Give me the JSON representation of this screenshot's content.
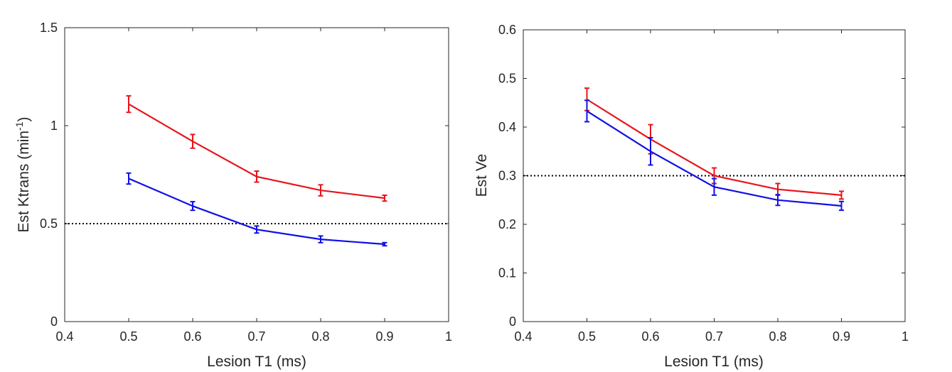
{
  "chart_data": [
    {
      "type": "line",
      "title": "",
      "xlabel": "Lesion T1 (ms)",
      "ylabel_main": "Est Ktrans (min",
      "ylabel_sup": "-1",
      "ylabel_close": ")",
      "xlim": [
        0.4,
        1.0
      ],
      "ylim": [
        0,
        1.5
      ],
      "xticks": [
        0.4,
        0.5,
        0.6,
        0.7,
        0.8,
        0.9,
        1.0
      ],
      "xtick_labels": [
        "0.4",
        "0.5",
        "0.6",
        "0.7",
        "0.8",
        "0.9",
        "1"
      ],
      "yticks": [
        0,
        0.5,
        1.0,
        1.5
      ],
      "ytick_labels": [
        "0",
        "0.5",
        "1",
        "1.5"
      ],
      "reference_line": 0.5,
      "x": [
        0.5,
        0.6,
        0.7,
        0.8,
        0.9
      ],
      "series": [
        {
          "name": "red",
          "color": "#e8141a",
          "values": [
            1.11,
            0.92,
            0.74,
            0.67,
            0.63
          ],
          "errors": [
            0.042,
            0.035,
            0.028,
            0.028,
            0.015
          ]
        },
        {
          "name": "blue",
          "color": "#1010e6",
          "values": [
            0.73,
            0.59,
            0.47,
            0.42,
            0.395
          ],
          "errors": [
            0.028,
            0.022,
            0.018,
            0.017,
            0.008
          ]
        }
      ]
    },
    {
      "type": "line",
      "title": "",
      "xlabel": "Lesion T1 (ms)",
      "ylabel": "Est Ve",
      "xlim": [
        0.4,
        1.0
      ],
      "ylim": [
        0,
        0.6
      ],
      "xticks": [
        0.4,
        0.5,
        0.6,
        0.7,
        0.8,
        0.9,
        1.0
      ],
      "xtick_labels": [
        "0.4",
        "0.5",
        "0.6",
        "0.7",
        "0.8",
        "0.9",
        "1"
      ],
      "yticks": [
        0,
        0.1,
        0.2,
        0.3,
        0.4,
        0.5,
        0.6
      ],
      "ytick_labels": [
        "0",
        "0.1",
        "0.2",
        "0.3",
        "0.4",
        "0.5",
        "0.6"
      ],
      "reference_line": 0.3,
      "x": [
        0.5,
        0.6,
        0.7,
        0.8,
        0.9
      ],
      "series": [
        {
          "name": "red",
          "color": "#e8141a",
          "values": [
            0.457,
            0.375,
            0.3,
            0.272,
            0.26
          ],
          "errors": [
            0.023,
            0.03,
            0.016,
            0.012,
            0.008
          ]
        },
        {
          "name": "blue",
          "color": "#1010e6",
          "values": [
            0.433,
            0.35,
            0.277,
            0.25,
            0.238
          ],
          "errors": [
            0.022,
            0.028,
            0.017,
            0.011,
            0.009
          ]
        }
      ]
    }
  ]
}
